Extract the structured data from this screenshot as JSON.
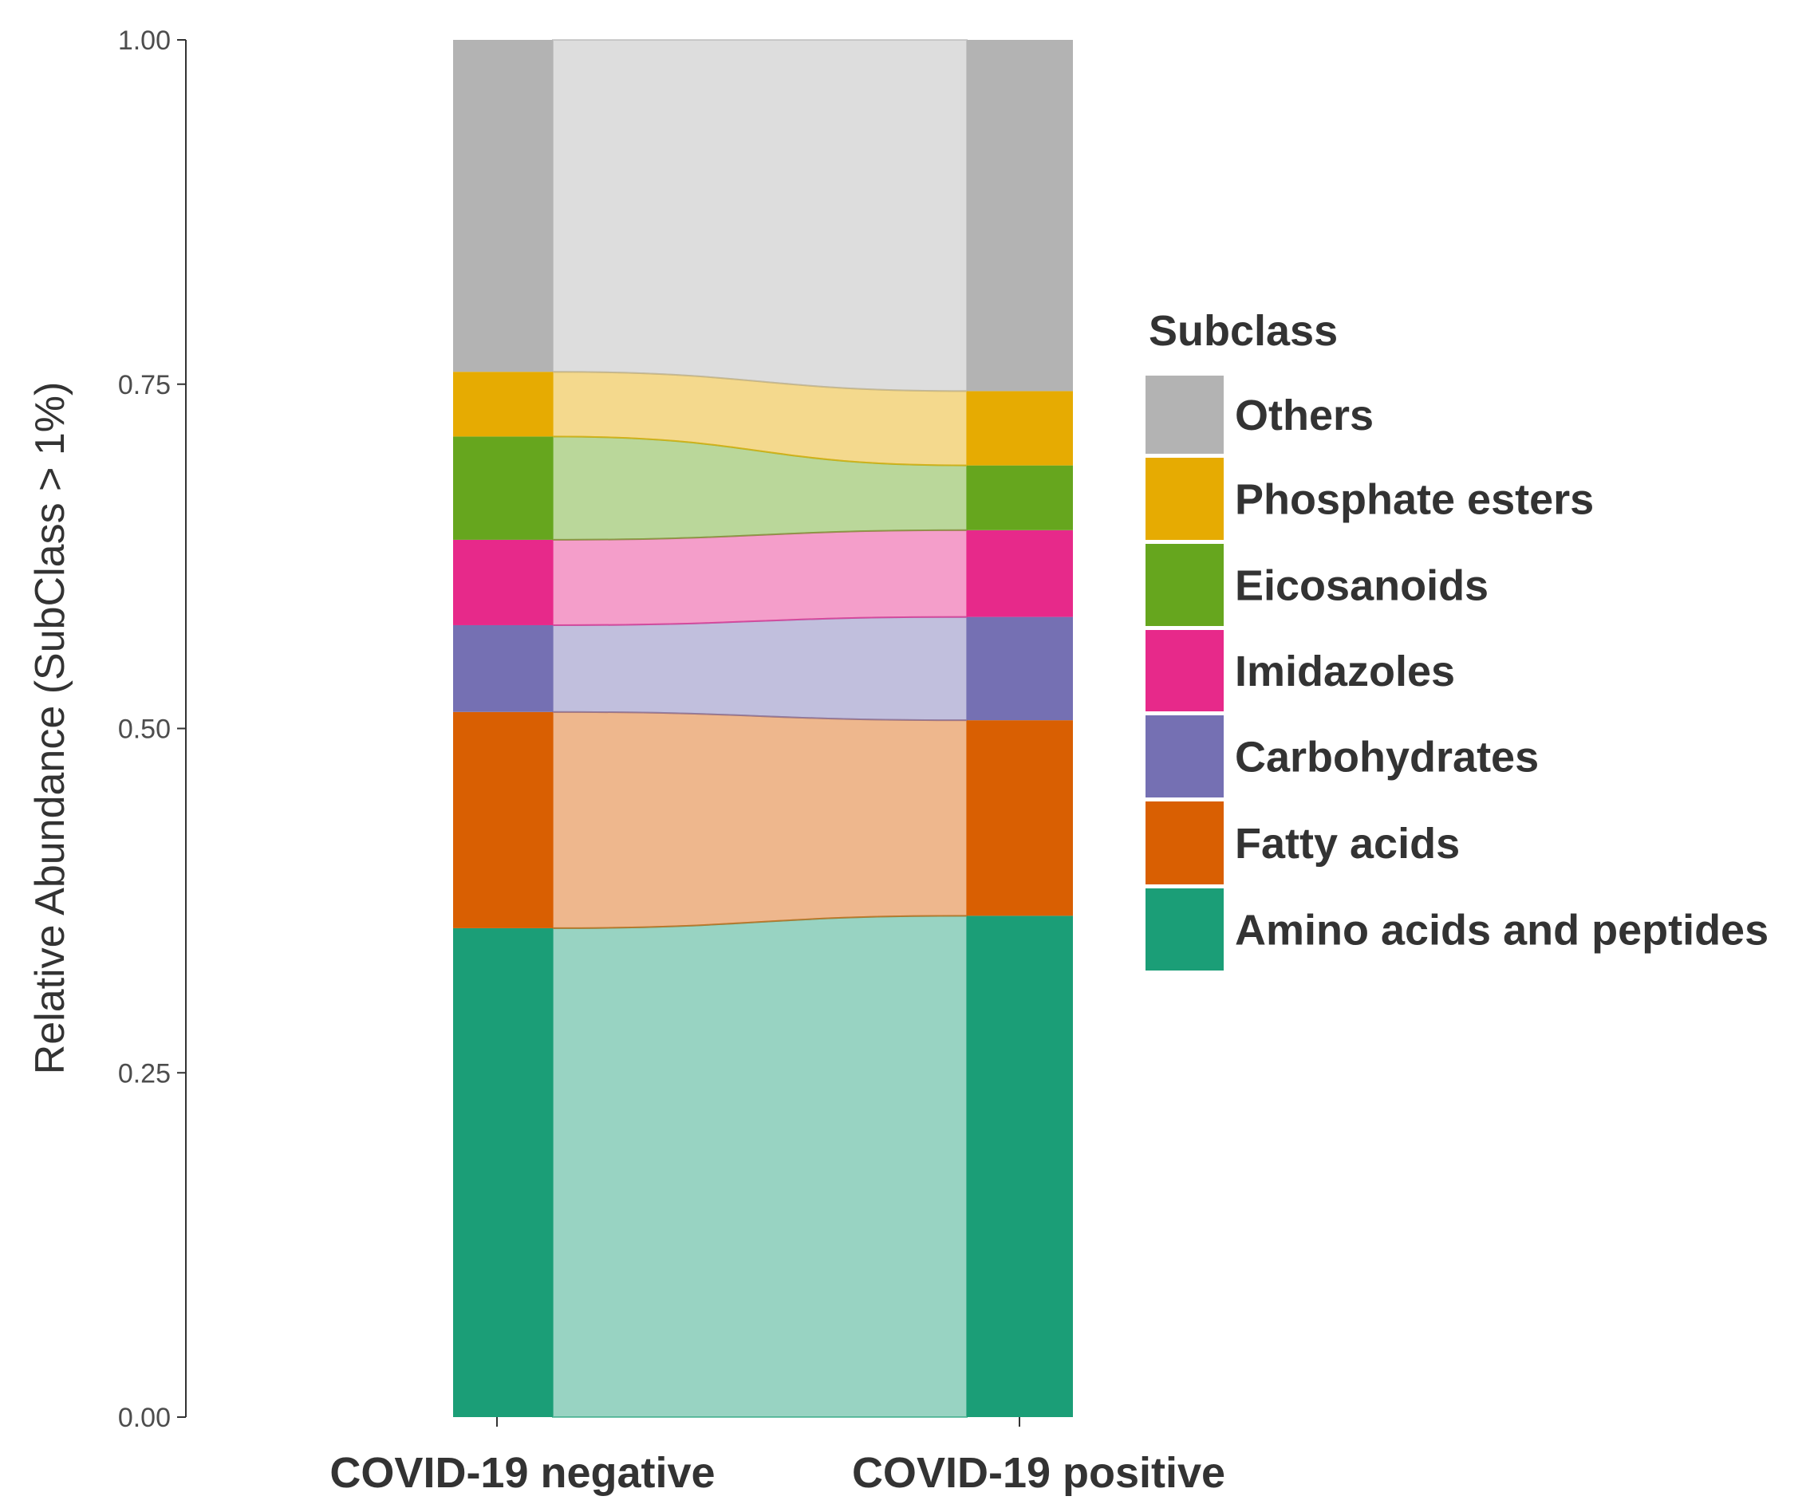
{
  "chart_data": {
    "type": "alluvial",
    "title": "",
    "xlabel": "",
    "ylabel": "Relative Abundance (SubClass > 1%)",
    "ylim": [
      0,
      1
    ],
    "yticks": [
      "0.00",
      "0.25",
      "0.50",
      "0.75",
      "1.00"
    ],
    "ytick_values": [
      0,
      0.25,
      0.5,
      0.75,
      1.0
    ],
    "grid": false,
    "legend_position": "right",
    "legend_title": "Subclass",
    "categories": [
      "COVID-19 negative",
      "COVID-19 positive"
    ],
    "series": [
      {
        "name": "Amino acids and peptides",
        "values": [
          0.355,
          0.364
        ],
        "color": "#1b9e77"
      },
      {
        "name": "Fatty acids",
        "values": [
          0.157,
          0.142
        ],
        "color": "#d95f02"
      },
      {
        "name": "Carbohydrates",
        "values": [
          0.063,
          0.075
        ],
        "color": "#7570b3"
      },
      {
        "name": "Imidazoles",
        "values": [
          0.062,
          0.063
        ],
        "color": "#e7298a"
      },
      {
        "name": "Eicosanoids",
        "values": [
          0.075,
          0.047
        ],
        "color": "#66a61e"
      },
      {
        "name": "Phosphate esters",
        "values": [
          0.047,
          0.054
        ],
        "color": "#e6ab02"
      },
      {
        "name": "Others",
        "values": [
          0.241,
          0.255
        ],
        "color": "#b3b3b3"
      }
    ],
    "legend_order": [
      "Others",
      "Phosphate esters",
      "Eicosanoids",
      "Imidazoles",
      "Carbohydrates",
      "Fatty acids",
      "Amino acids and peptides"
    ]
  }
}
